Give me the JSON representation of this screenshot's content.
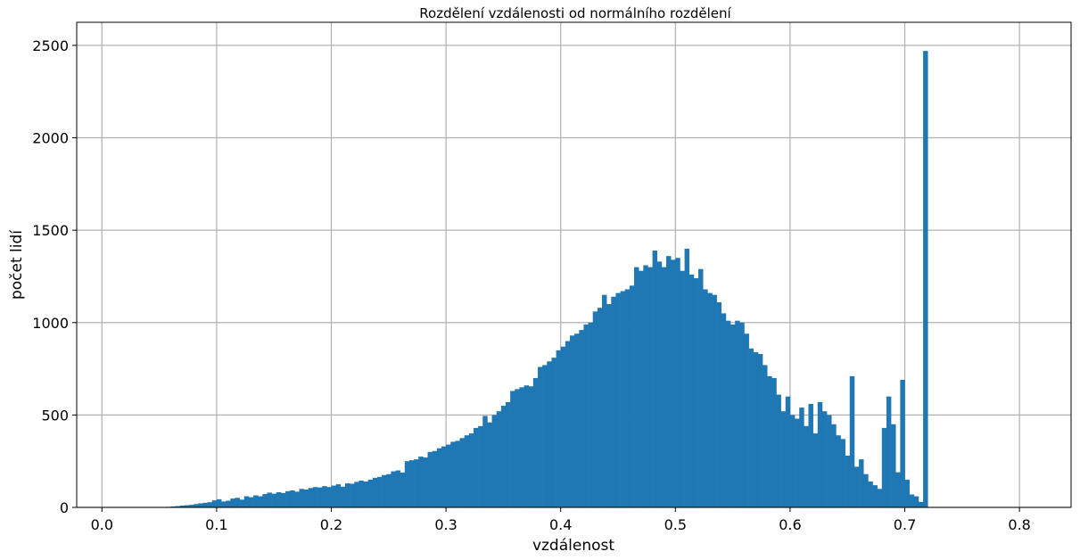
{
  "chart_data": {
    "type": "bar",
    "title": "Rozdělení vzdálenosti od normálního rozdělení",
    "xlabel": "vzdálenost",
    "ylabel": "počet lidí",
    "xlim": [
      -0.022,
      0.845
    ],
    "ylim": [
      0,
      2625
    ],
    "xticks": [
      0.0,
      0.1,
      0.2,
      0.3,
      0.4,
      0.5,
      0.6,
      0.7,
      0.8
    ],
    "xtick_labels": [
      "0.0",
      "0.1",
      "0.2",
      "0.3",
      "0.4",
      "0.5",
      "0.6",
      "0.7",
      "0.8"
    ],
    "yticks": [
      0,
      500,
      1000,
      1500,
      2000,
      2500
    ],
    "ytick_labels": [
      "0",
      "500",
      "1000",
      "1500",
      "2000",
      "2500"
    ],
    "grid": true,
    "color": "#1f77b4",
    "bin_start": 0.0,
    "bin_width": 0.004,
    "values": [
      0,
      0,
      0,
      0,
      0,
      0,
      0,
      0,
      0,
      0,
      0,
      0,
      0,
      1,
      3,
      5,
      7,
      10,
      12,
      14,
      18,
      22,
      25,
      28,
      38,
      44,
      32,
      36,
      48,
      52,
      42,
      60,
      55,
      65,
      60,
      72,
      80,
      74,
      82,
      78,
      88,
      92,
      85,
      100,
      97,
      105,
      110,
      108,
      115,
      110,
      118,
      125,
      112,
      130,
      128,
      138,
      145,
      140,
      150,
      160,
      165,
      175,
      180,
      195,
      200,
      188,
      250,
      255,
      260,
      275,
      270,
      300,
      305,
      320,
      330,
      340,
      355,
      360,
      375,
      390,
      400,
      430,
      440,
      495,
      460,
      500,
      520,
      550,
      570,
      630,
      640,
      650,
      660,
      655,
      700,
      760,
      770,
      790,
      810,
      850,
      870,
      900,
      930,
      940,
      960,
      990,
      1000,
      1060,
      1080,
      1150,
      1100,
      1140,
      1160,
      1170,
      1180,
      1200,
      1300,
      1280,
      1310,
      1300,
      1390,
      1330,
      1300,
      1360,
      1340,
      1350,
      1280,
      1400,
      1260,
      1240,
      1290,
      1180,
      1160,
      1150,
      1110,
      1050,
      1010,
      990,
      1010,
      1000,
      940,
      860,
      840,
      830,
      770,
      710,
      700,
      610,
      520,
      600,
      500,
      480,
      540,
      440,
      560,
      400,
      570,
      520,
      500,
      450,
      390,
      370,
      280,
      710,
      220,
      260,
      180,
      140,
      120,
      100,
      430,
      600,
      450,
      190,
      690,
      150,
      70,
      60,
      30,
      2470
    ]
  }
}
